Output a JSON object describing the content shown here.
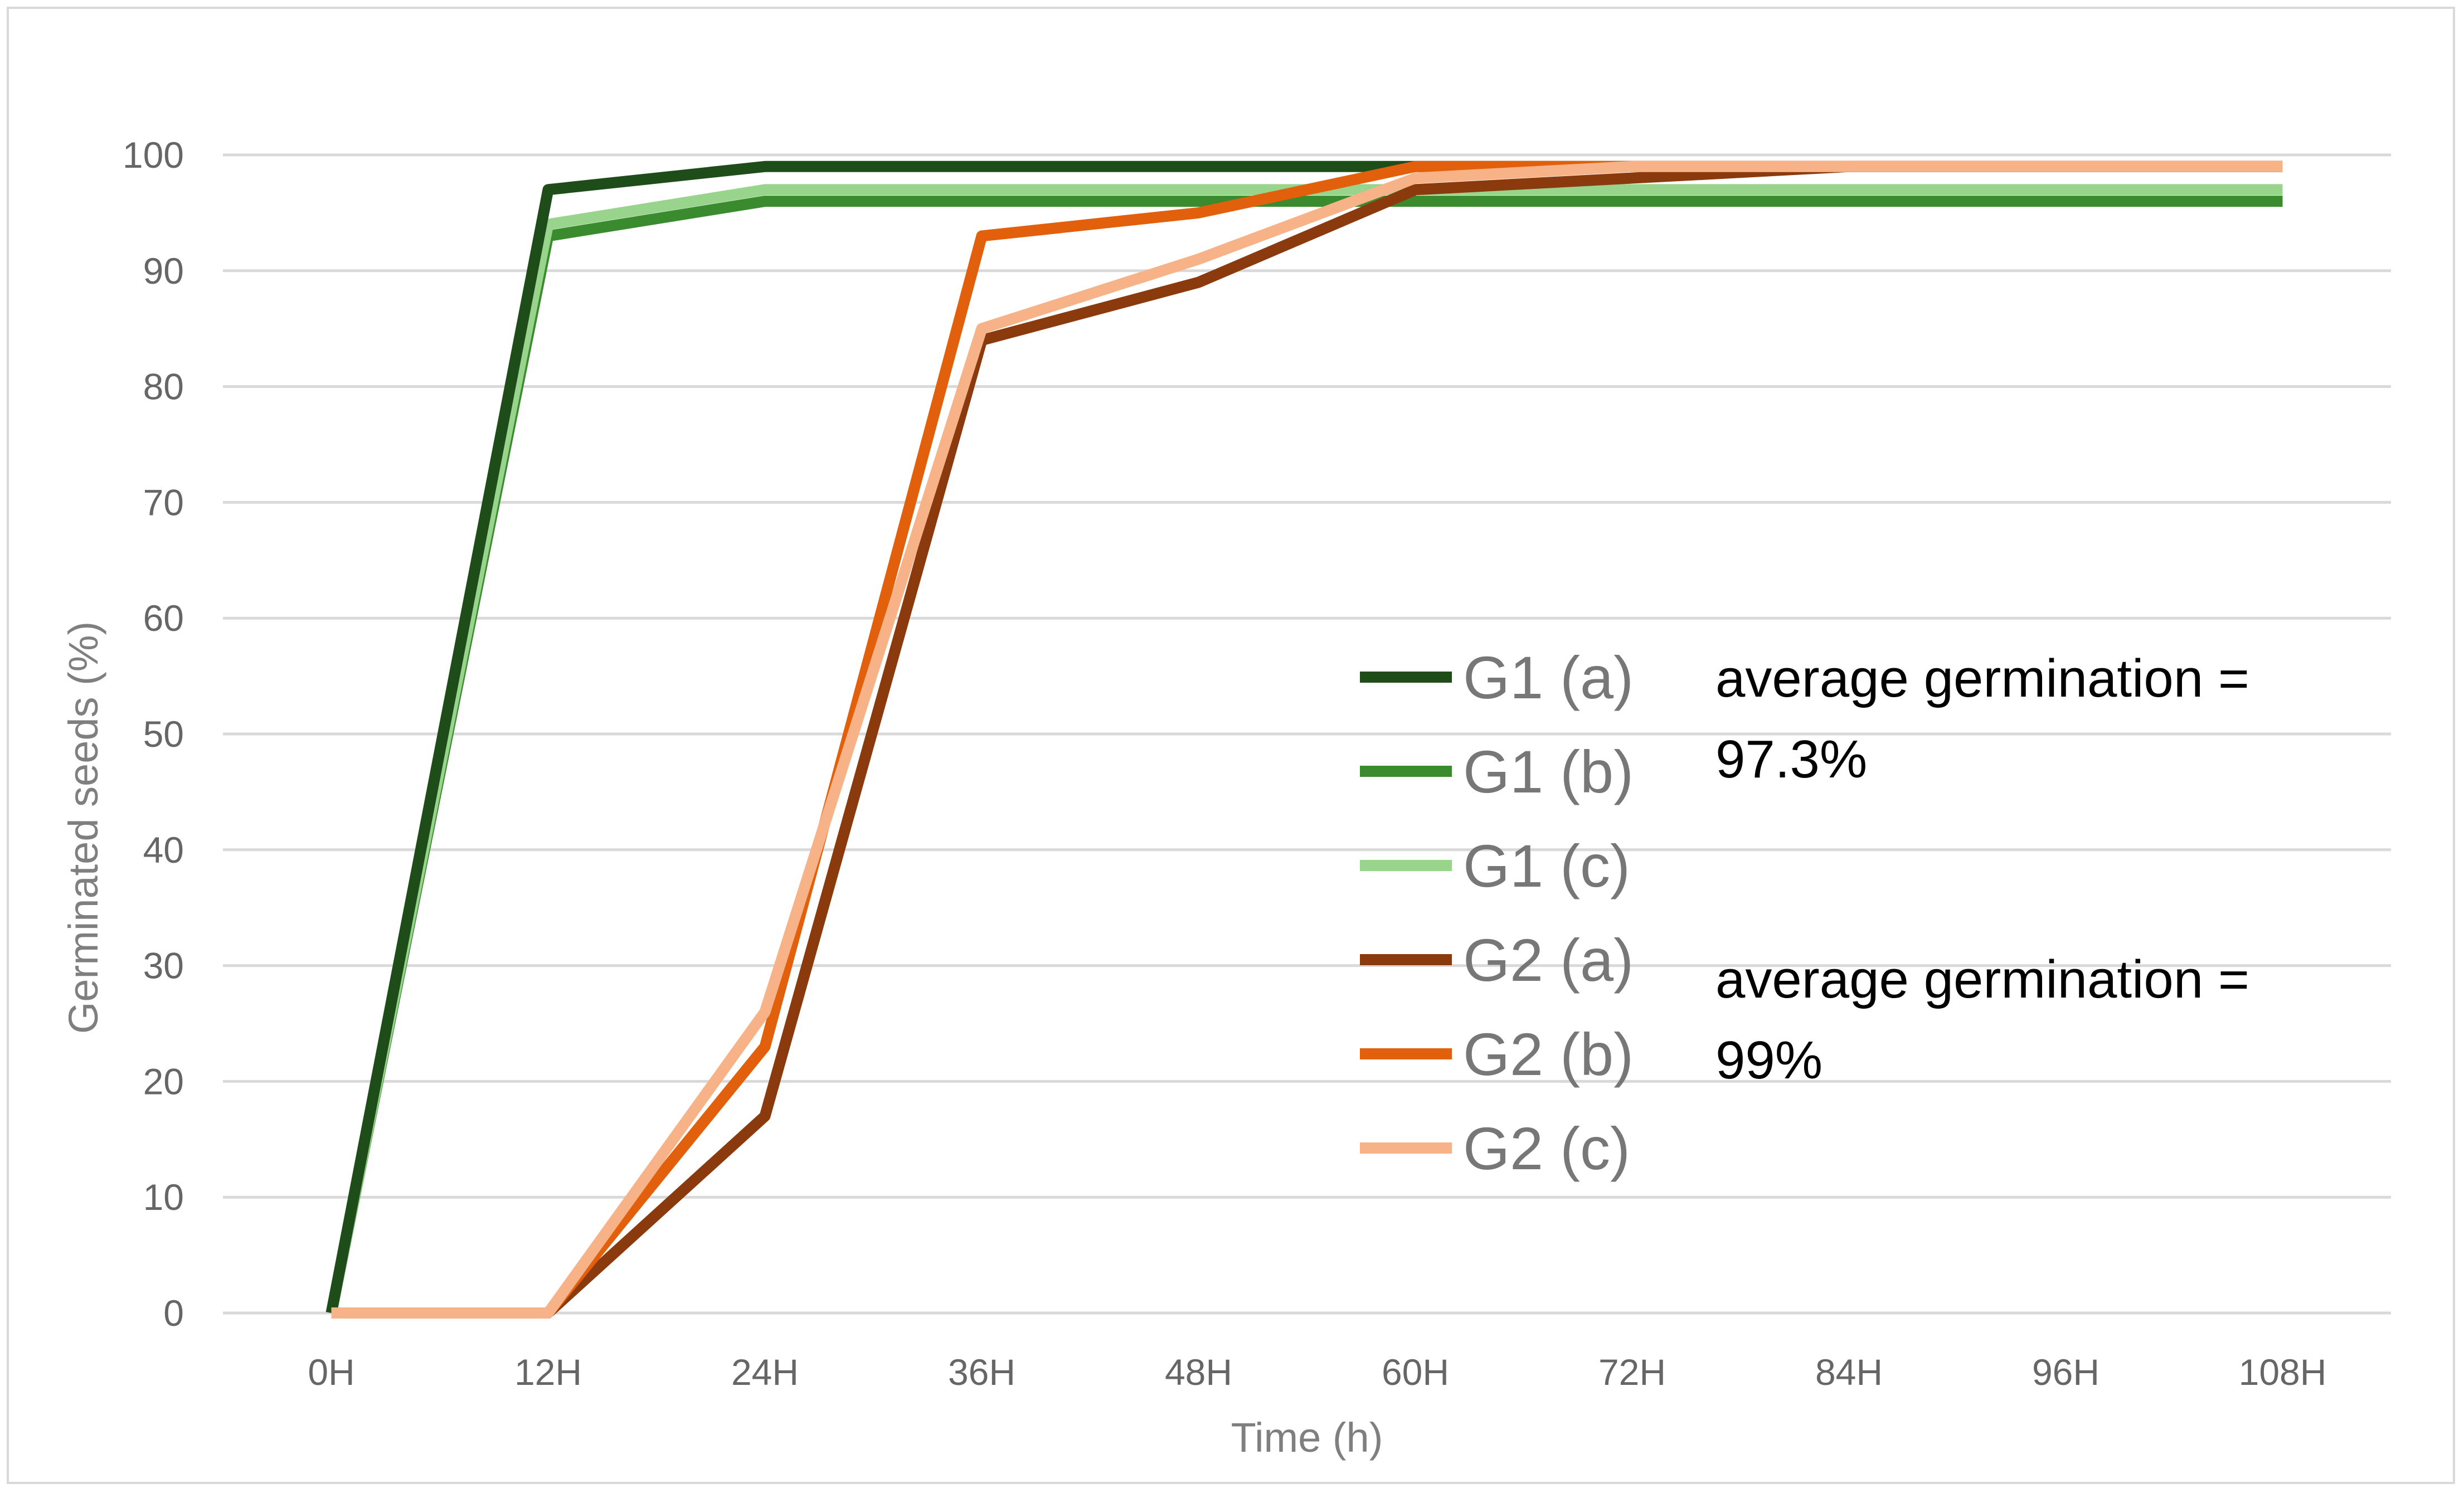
{
  "chart_data": {
    "type": "line",
    "title": "",
    "xlabel": "Time (h)",
    "ylabel": "Germinated seeds (%)",
    "ylim": [
      0,
      100
    ],
    "yticks": [
      0,
      10,
      20,
      30,
      40,
      50,
      60,
      70,
      80,
      90,
      100
    ],
    "grid": true,
    "legend_position": "center-right",
    "categories": [
      "0H",
      "12H",
      "24H",
      "36H",
      "48H",
      "60H",
      "72H",
      "84H",
      "96H",
      "108H"
    ],
    "series": [
      {
        "name": "G1 (a)",
        "color": "#1e4d1a",
        "values": [
          0,
          97,
          99,
          99,
          99,
          99,
          99,
          99,
          99,
          99
        ]
      },
      {
        "name": "G1 (b)",
        "color": "#3a8a2e",
        "values": [
          0,
          93,
          96,
          96,
          96,
          96,
          96,
          96,
          96,
          96
        ]
      },
      {
        "name": "G1 (c)",
        "color": "#98d48c",
        "values": [
          0,
          94,
          97,
          97,
          97,
          97,
          97,
          97,
          97,
          97
        ]
      },
      {
        "name": "G2 (a)",
        "color": "#8b3a0e",
        "values": [
          0,
          0,
          17,
          84,
          89,
          97,
          98,
          99,
          99,
          99
        ]
      },
      {
        "name": "G2 (b)",
        "color": "#e2600c",
        "values": [
          0,
          0,
          23,
          93,
          95,
          99,
          99,
          99,
          99,
          99
        ]
      },
      {
        "name": "G2 (c)",
        "color": "#f8b287",
        "values": [
          0,
          0,
          26,
          85,
          91,
          98,
          99,
          99,
          99,
          99
        ]
      }
    ],
    "annotations": [
      {
        "line1": "average germination =",
        "line2": "97.3%"
      },
      {
        "line1": "average germination =",
        "line2": "99%"
      }
    ],
    "gridline_color": "#d9d9d9"
  }
}
